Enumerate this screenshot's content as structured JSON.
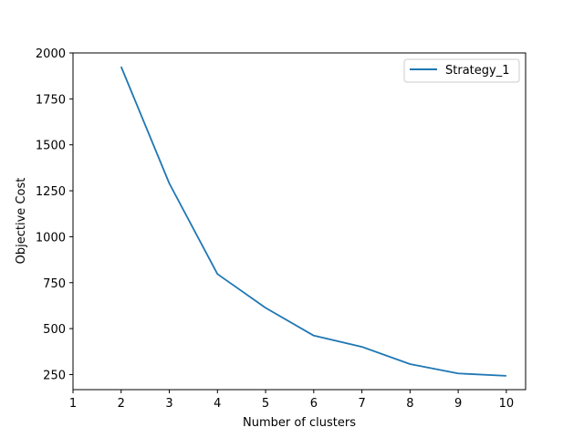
{
  "chart_data": {
    "type": "line",
    "xlabel": "Number of clusters",
    "ylabel": "Objective Cost",
    "xlim": [
      1,
      10.4
    ],
    "ylim": [
      168,
      2000
    ],
    "xticks": [
      "1",
      "2",
      "3",
      "4",
      "5",
      "6",
      "7",
      "8",
      "9",
      "10"
    ],
    "yticks": [
      "250",
      "500",
      "750",
      "1000",
      "1250",
      "1500",
      "1750",
      "2000"
    ],
    "grid": false,
    "legend_position": "top-right",
    "series": [
      {
        "name": "Strategy_1",
        "color": "#1f77b4",
        "x": [
          2,
          3,
          4,
          5,
          6,
          7,
          8,
          9,
          10
        ],
        "y": [
          1925,
          1290,
          797,
          613,
          462,
          401,
          307,
          256,
          243
        ]
      }
    ]
  }
}
